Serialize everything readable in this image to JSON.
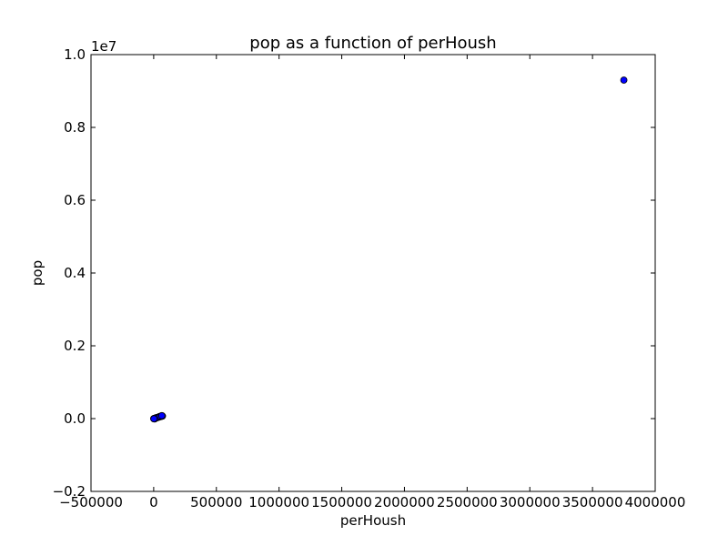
{
  "chart_data": {
    "type": "scatter",
    "title": "pop as a function of perHoush",
    "xlabel": "perHoush",
    "ylabel": "pop",
    "xlim": [
      -500000,
      4000000
    ],
    "ylim": [
      -2000000,
      10000000
    ],
    "xticks": [
      -500000,
      0,
      500000,
      1000000,
      1500000,
      2000000,
      2500000,
      3000000,
      3500000,
      4000000
    ],
    "xtick_labels": [
      "−500000",
      "0",
      "500000",
      "1000000",
      "1500000",
      "2000000",
      "2500000",
      "3000000",
      "3500000",
      "4000000"
    ],
    "yticks": [
      -2000000,
      0,
      2000000,
      4000000,
      6000000,
      8000000,
      10000000
    ],
    "ytick_labels": [
      "−0.2",
      "0.0",
      "0.2",
      "0.4",
      "0.6",
      "0.8",
      "1.0"
    ],
    "y_offset_label": "1e7",
    "grid": false,
    "marker_color": "#0000ff",
    "series": [
      {
        "x": [
          3750000,
          0,
          5000,
          10000,
          15000,
          20000,
          25000,
          30000,
          40000,
          50000,
          60000,
          70000,
          8000,
          12000,
          18000,
          35000,
          45000,
          55000,
          2000,
          65000
        ],
        "y": [
          9300000,
          0,
          5000,
          10000,
          15000,
          20000,
          25000,
          30000,
          40000,
          50000,
          60000,
          70000,
          -10000,
          5000,
          20000,
          35000,
          55000,
          65000,
          -5000,
          80000
        ]
      }
    ]
  }
}
